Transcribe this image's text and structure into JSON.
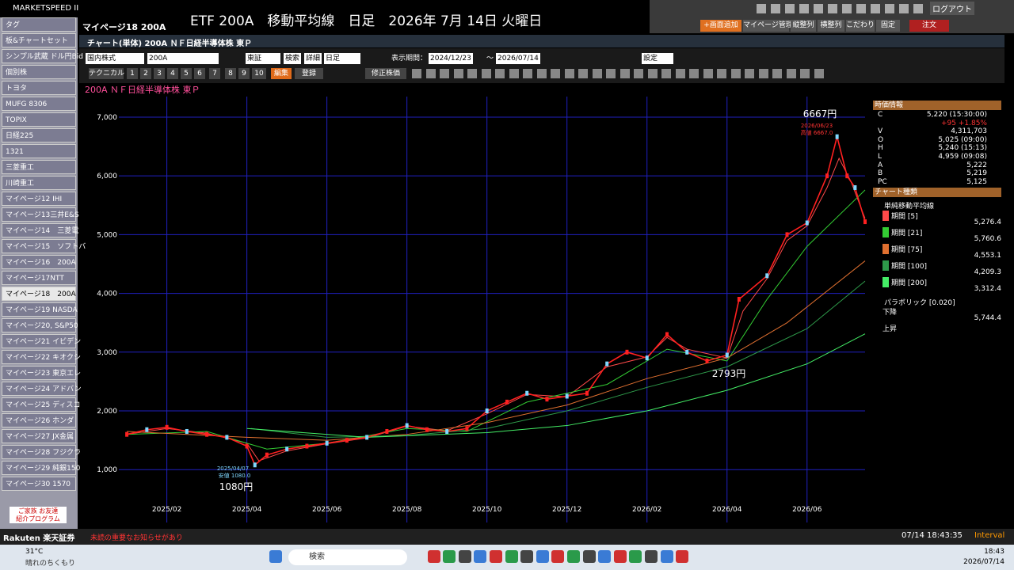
{
  "top_bar": {
    "logo": "MARKETSPEED II",
    "page": "マイページ18  200A",
    "headline": "ETF 200A　移動平均線　日足　2026年 7月 14日 火曜日",
    "logout": "ログアウト",
    "buttons": [
      "+画面追加",
      "マイページ管理",
      "縦整列",
      "横整列",
      "こだわり",
      "固定",
      "注文"
    ]
  },
  "sidebar": {
    "items": [
      "タグ",
      "板&チャートセット",
      "シンプル武蔵 ドル円Bid",
      "個別株",
      "トヨタ",
      "MUFG 8306",
      "TOPIX",
      "日経225",
      "1321",
      "三菱重工",
      "川崎重工",
      "マイページ12 IHI",
      "マイページ13三井E&S",
      "マイページ14　三菱電",
      "マイページ15　ソフトバ",
      "マイページ16　200A",
      "マイページ17NTT",
      "マイページ18　200A",
      "マイページ19 NASDA",
      "マイページ20, S&P50",
      "マイページ21 イビデン",
      "マイページ22 キオクシ",
      "マイページ23 東京エレ",
      "マイページ24 アドバン",
      "マイページ25 ディスコ",
      "マイページ26 ホンダ",
      "マイページ27 JX金属",
      "マイページ28 フジクラ",
      "マイページ29 純銀150",
      "マイページ30 1570"
    ],
    "selected": 17,
    "promo": [
      "ご家族 お友達",
      "紹介プログラム"
    ]
  },
  "window": {
    "title": "チャート(単体) 200A ＮＦ日経半導体株 東Ｐ",
    "controls": [
      "国内株式",
      "200A",
      "東証",
      "検索",
      "詳細",
      "日足",
      "表示期間：",
      "2024/12/23",
      "～",
      "2026/07/14",
      "設定"
    ],
    "toolbar": [
      "テクニカル",
      "1",
      "2",
      "3",
      "4",
      "5",
      "6",
      "7",
      "8",
      "9",
      "10",
      "編集",
      "登録",
      "修正株価"
    ],
    "chart_label": "200A ＮＦ日経半導体株 東Ｐ"
  },
  "chart_data": {
    "type": "line",
    "xlim": [
      -0.2,
      18.45
    ],
    "xticks": [
      {
        "value": 1,
        "label": "2025/02"
      },
      {
        "value": 3,
        "label": "2025/04"
      },
      {
        "value": 5,
        "label": "2025/06"
      },
      {
        "value": 7,
        "label": "2025/08"
      },
      {
        "value": 9,
        "label": "2025/10"
      },
      {
        "value": 11,
        "label": "2025/12"
      },
      {
        "value": 13,
        "label": "2026/02"
      },
      {
        "value": 15,
        "label": "2026/04"
      },
      {
        "value": 17,
        "label": "2026/06"
      }
    ],
    "ylim": [
      100,
      7350
    ],
    "yticks": [
      {
        "value": 1000,
        "label": "1,000"
      },
      {
        "value": 2000,
        "label": "2,000"
      },
      {
        "value": 3000,
        "label": "3,000"
      },
      {
        "value": 4000,
        "label": "4,000"
      },
      {
        "value": 5000,
        "label": "5,000"
      },
      {
        "value": 6000,
        "label": "6,000"
      },
      {
        "value": 7000,
        "label": "7,000"
      }
    ],
    "grid": true,
    "price": {
      "color": "#ff2020",
      "x": [
        0,
        0.5,
        1,
        1.5,
        2,
        2.5,
        3,
        3.2,
        3.5,
        4,
        4.5,
        5,
        5.5,
        6,
        6.5,
        7,
        7.5,
        8,
        8.5,
        9,
        9.5,
        10,
        10.5,
        11,
        11.5,
        12,
        12.5,
        13,
        13.5,
        14,
        14.5,
        15,
        15.3,
        16,
        16.5,
        17,
        17.5,
        17.75,
        18,
        18.2,
        18.45
      ],
      "values": [
        1600,
        1680,
        1720,
        1650,
        1600,
        1550,
        1400,
        1080,
        1250,
        1350,
        1400,
        1450,
        1500,
        1550,
        1650,
        1750,
        1680,
        1650,
        1700,
        2000,
        2150,
        2300,
        2200,
        2250,
        2300,
        2800,
        3000,
        2900,
        3300,
        3000,
        2850,
        2950,
        3900,
        4300,
        5000,
        5200,
        6000,
        6667,
        6000,
        5800,
        5220
      ]
    },
    "series": [
      {
        "name": "期間 [5]",
        "color": "#ff4a4a",
        "x": [
          0,
          1,
          2,
          3,
          3.3,
          4,
          5,
          6,
          7,
          8,
          9,
          10,
          11,
          12,
          13,
          13.5,
          14,
          15,
          15.4,
          16,
          16.5,
          17,
          17.5,
          17.8,
          18.1,
          18.45
        ],
        "values": [
          1600,
          1700,
          1620,
          1450,
          1150,
          1320,
          1440,
          1540,
          1740,
          1660,
          1950,
          2280,
          2240,
          2750,
          2920,
          3250,
          3050,
          2900,
          3700,
          4250,
          4900,
          5150,
          5800,
          6300,
          5900,
          5276
        ]
      },
      {
        "name": "期間 [21]",
        "color": "#33cc33",
        "x": [
          0,
          2,
          3.5,
          5,
          7,
          8.5,
          10,
          12,
          13.5,
          15,
          16,
          17,
          18.45
        ],
        "values": [
          1600,
          1650,
          1350,
          1450,
          1700,
          1650,
          2150,
          2450,
          3050,
          2850,
          3900,
          4800,
          5760
        ]
      },
      {
        "name": "期間 [75]",
        "color": "#e07030",
        "x": [
          0,
          3,
          5,
          7,
          9,
          11,
          13,
          15,
          16.5,
          18.45
        ],
        "values": [
          1650,
          1550,
          1500,
          1600,
          1800,
          2100,
          2550,
          2900,
          3500,
          4553
        ]
      },
      {
        "name": "期間 [100]",
        "color": "#2e9a4a",
        "x": [
          3.1,
          5,
          7,
          9,
          11,
          13,
          15,
          17,
          18.45
        ],
        "values": [
          1700,
          1550,
          1580,
          1700,
          2000,
          2400,
          2750,
          3400,
          4209
        ]
      },
      {
        "name": "期間 [200]",
        "color": "#44ee66",
        "x": [
          3,
          6,
          9,
          11,
          13,
          15,
          17,
          18.45
        ],
        "values": [
          1700,
          1550,
          1630,
          1750,
          2000,
          2350,
          2800,
          3312
        ]
      }
    ],
    "annotations": [
      "6667円",
      "2026/06/23",
      "高値 6667.0",
      "2793円",
      "2025/04/07",
      "安値 1080.0",
      "1080円"
    ]
  },
  "quote_panel": {
    "header": "時価情報",
    "rows": [
      [
        "C",
        "5,220 (15:30:00)"
      ],
      [
        "",
        "+95  +1.85%"
      ],
      [
        "V",
        "4,311,703"
      ],
      [
        "O",
        "5,025 (09:00)"
      ],
      [
        "H",
        "5,240 (15:13)"
      ],
      [
        "L",
        "4,959 (09:08)"
      ],
      [
        "A",
        "5,222"
      ],
      [
        "B",
        "5,219"
      ],
      [
        "PC",
        "5,125"
      ]
    ],
    "type_header": "チャート種類",
    "ma_title": "単純移動平均線",
    "ma_values": [
      "5,276.4",
      "5,760.6",
      "4,553.1",
      "4,209.3",
      "3,312.4"
    ],
    "sar_title": "パラボリック [0.020]",
    "sar_rows": [
      [
        "下降",
        "5,744.4"
      ],
      [
        "上昇",
        ""
      ]
    ]
  },
  "status_bar": {
    "brand": "Rakuten 楽天証券",
    "notice": "未読の重要なお知らせがあり",
    "clock": "07/14 18:43:35",
    "interval": "Interval"
  },
  "taskbar": {
    "temp": "31°C",
    "weather": "晴れのちくもり",
    "search": "検索",
    "time": "18:43",
    "date": "2026/07/14"
  }
}
